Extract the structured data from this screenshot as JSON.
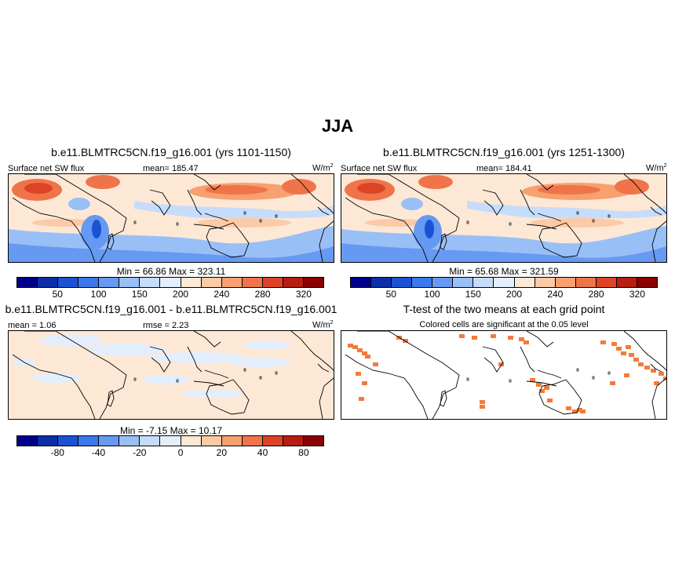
{
  "main_title": "JJA",
  "units_label": "W/m",
  "units_sup": "2",
  "panels": {
    "top_left": {
      "title": "b.e11.BLMTRC5CN.f19_g16.001 (yrs 1101-1150)",
      "variable": "Surface net SW flux",
      "mean": "mean= 185.47",
      "minmax": "Min =  66.86 Max = 323.11"
    },
    "top_right": {
      "title": "b.e11.BLMTRC5CN.f19_g16.001 (yrs 1251-1300)",
      "variable": "Surface net SW flux",
      "mean": "mean= 184.41",
      "minmax": "Min =  65.68 Max = 321.59"
    },
    "bottom_left": {
      "title": "b.e11.BLMTRC5CN.f19_g16.001 - b.e11.BLMTRC5CN.f19_g16.001",
      "mean": "mean =   1.06",
      "rmse": "rmse =   2.23",
      "minmax": "Min =  -7.15 Max =  10.17"
    },
    "bottom_right": {
      "title": "T-test of the two means at each grid point",
      "subtitle": "Colored cells are significant at the 0.05 level"
    }
  },
  "colorbars": {
    "flux": {
      "colors": [
        "#00008b",
        "#0a2fa8",
        "#1a52d6",
        "#3a78ec",
        "#6699f2",
        "#99bff7",
        "#c6dcfb",
        "#e3eefd",
        "#fde8d6",
        "#fccaa6",
        "#f8a070",
        "#f0744a",
        "#dc4425",
        "#b81d12",
        "#8b0000"
      ],
      "ticks": [
        "50",
        "100",
        "150",
        "200",
        "240",
        "280",
        "320"
      ]
    },
    "diff": {
      "colors": [
        "#00008b",
        "#0a2fa8",
        "#1a52d6",
        "#3a78ec",
        "#6699f2",
        "#99bff7",
        "#c6dcfb",
        "#e3eefd",
        "#fde8d6",
        "#fccaa6",
        "#f8a070",
        "#f0744a",
        "#dc4425",
        "#b81d12",
        "#8b0000"
      ],
      "ticks": [
        "-80",
        "-40",
        "-20",
        "0",
        "20",
        "40",
        "80"
      ]
    }
  },
  "map_colors": {
    "ocean_mid": "#fde8d6",
    "high": "#f0744a",
    "very_high": "#dc4425",
    "low": "#6699f2",
    "mid_low": "#c6dcfb",
    "sig": "#f47a3c",
    "coast": "#000000"
  }
}
